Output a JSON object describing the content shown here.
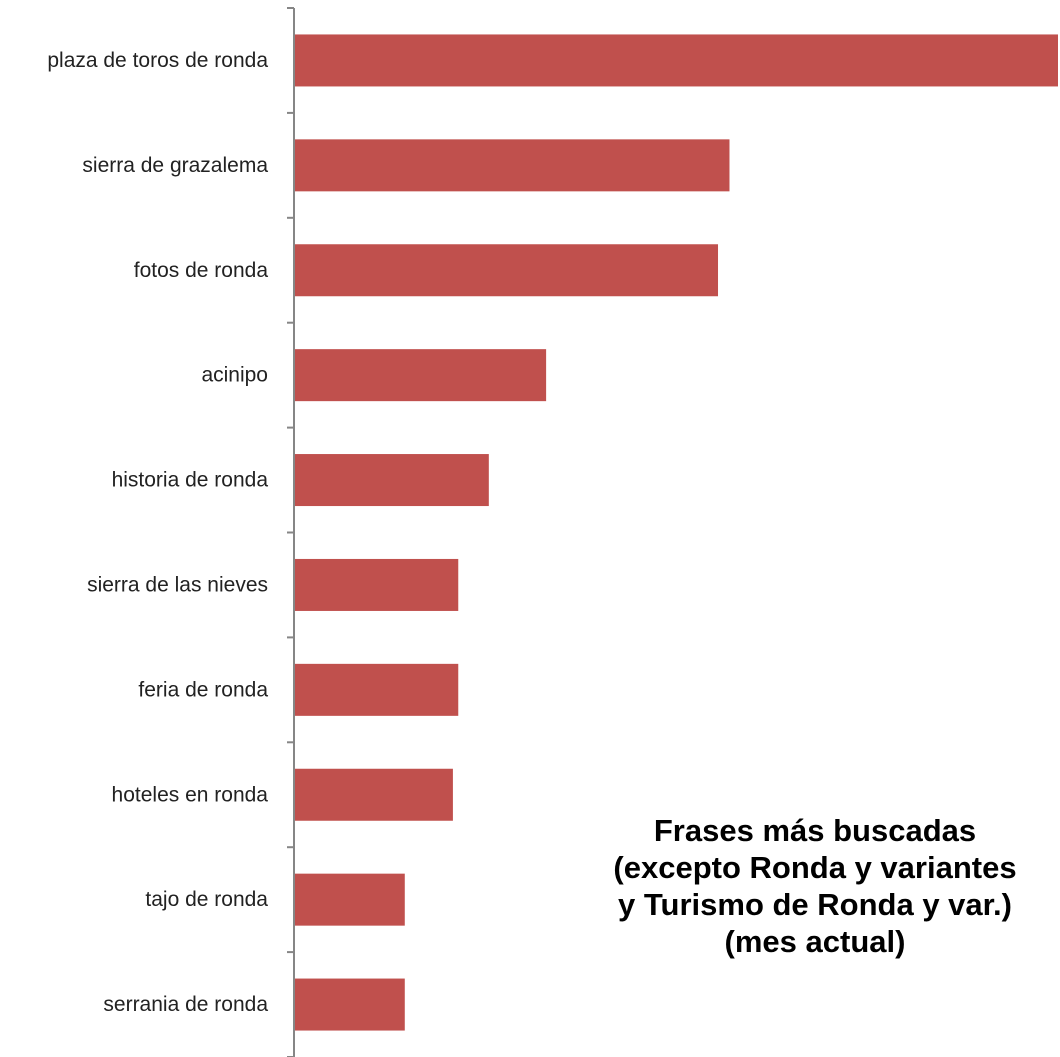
{
  "chart_data": {
    "type": "bar",
    "orientation": "horizontal",
    "title_lines": [
      "Frases más buscadas",
      "(excepto Ronda y variantes",
      "y Turismo de Ronda y var.)",
      "(mes actual)"
    ],
    "categories": [
      "plaza de toros de ronda",
      "sierra de grazalema",
      "fotos de ronda",
      "acinipo",
      "historia de ronda",
      "sierra de las nieves",
      "feria de ronda",
      "hoteles en ronda",
      "tajo de ronda",
      "serrania de ronda"
    ],
    "values": [
      100,
      57,
      55.5,
      33,
      25.5,
      21.5,
      21.5,
      20.8,
      14.5,
      14.5
    ],
    "xlim": [
      0,
      100
    ],
    "xlabel": "",
    "ylabel": "",
    "grid": false,
    "legend": "none",
    "bar_color": "#C0504D",
    "axis_color": "#868686"
  }
}
